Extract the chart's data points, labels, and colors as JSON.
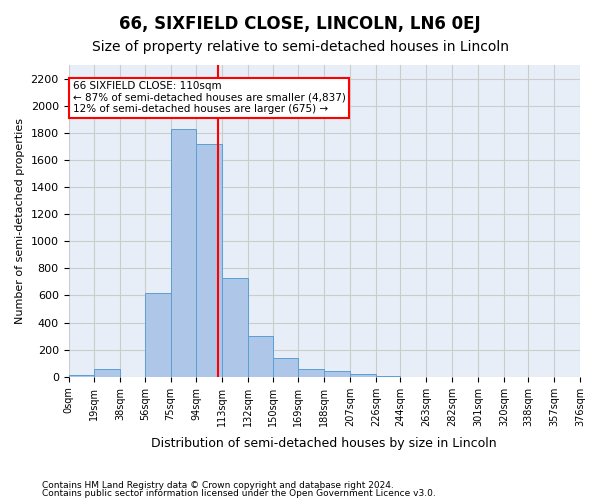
{
  "title": "66, SIXFIELD CLOSE, LINCOLN, LN6 0EJ",
  "subtitle": "Size of property relative to semi-detached houses in Lincoln",
  "xlabel": "Distribution of semi-detached houses by size in Lincoln",
  "ylabel": "Number of semi-detached properties",
  "property_size": 110,
  "annotation_title": "66 SIXFIELD CLOSE: 110sqm",
  "annotation_line1": "← 87% of semi-detached houses are smaller (4,837)",
  "annotation_line2": "12% of semi-detached houses are larger (675) →",
  "footer1": "Contains HM Land Registry data © Crown copyright and database right 2024.",
  "footer2": "Contains public sector information licensed under the Open Government Licence v3.0.",
  "bar_edges": [
    0,
    19,
    38,
    56,
    75,
    94,
    113,
    132,
    150,
    169,
    188,
    207,
    226,
    244,
    263,
    282,
    301,
    320,
    338,
    357,
    376
  ],
  "bar_heights": [
    10,
    55,
    0,
    620,
    1830,
    1720,
    730,
    300,
    135,
    60,
    40,
    20,
    5,
    2,
    1,
    0,
    0,
    0,
    0,
    0
  ],
  "bar_color": "#aec6e8",
  "bar_edge_color": "#5a9fd4",
  "red_line_x": 110,
  "ylim": [
    0,
    2300
  ],
  "yticks": [
    0,
    200,
    400,
    600,
    800,
    1000,
    1200,
    1400,
    1600,
    1800,
    2000,
    2200
  ],
  "grid_color": "#cccccc",
  "background_color": "#e8eef7",
  "title_fontsize": 12,
  "subtitle_fontsize": 10,
  "annotation_box_color": "white",
  "annotation_box_edge": "red"
}
